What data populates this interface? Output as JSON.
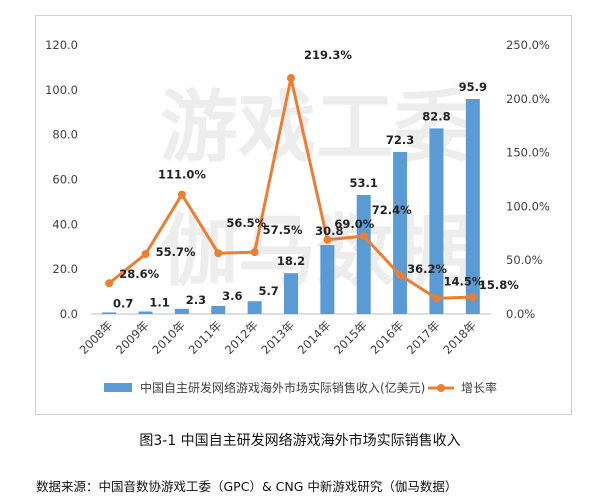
{
  "caption": "图3-1  中国自主研发网络游戏海外市场实际销售收入",
  "source_note": "数据来源：中国音数协游戏工委（GPC）& CNG 中新游戏研究（伽马数据）",
  "watermark": [
    "游戏工委",
    "伽马数据"
  ],
  "colors": {
    "bar": "#5B9BD5",
    "line": "#ED7D31"
  },
  "chart_data": {
    "type": "bar+line",
    "categories": [
      "2008年",
      "2009年",
      "2010年",
      "2011年",
      "2012年",
      "2013年",
      "2014年",
      "2015年",
      "2016年",
      "2017年",
      "2018年"
    ],
    "series": [
      {
        "name": "中国自主研发网络游戏海外市场实际销售收入(亿美元)",
        "type": "bar",
        "axis": "left",
        "values": [
          0.7,
          1.1,
          2.3,
          3.6,
          5.7,
          18.2,
          30.8,
          53.1,
          72.3,
          82.8,
          95.9
        ],
        "labels": [
          "0.7",
          "1.1",
          "2.3",
          "3.6",
          "5.7",
          "18.2",
          "30.8",
          "53.1",
          "72.3",
          "82.8",
          "95.9"
        ]
      },
      {
        "name": "增长率",
        "type": "line",
        "axis": "right",
        "values": [
          28.6,
          55.7,
          111.0,
          56.5,
          57.5,
          219.3,
          69.0,
          72.4,
          36.2,
          14.5,
          15.8
        ],
        "labels": [
          "28.6%",
          "55.7%",
          "111.0%",
          "56.5%",
          "57.5%",
          "219.3%",
          "69.0%",
          "72.4%",
          "36.2%",
          "14.5%",
          "15.8%"
        ]
      }
    ],
    "left_axis": {
      "min": 0,
      "max": 120,
      "ticks": [
        "0.0",
        "20.0",
        "40.0",
        "60.0",
        "80.0",
        "100.0",
        "120.0"
      ]
    },
    "right_axis": {
      "min": 0,
      "max": 250,
      "ticks": [
        "0.0%",
        "50.0%",
        "100.0%",
        "150.0%",
        "200.0%",
        "250.0%"
      ]
    },
    "grid": false,
    "legend_position": "bottom"
  }
}
